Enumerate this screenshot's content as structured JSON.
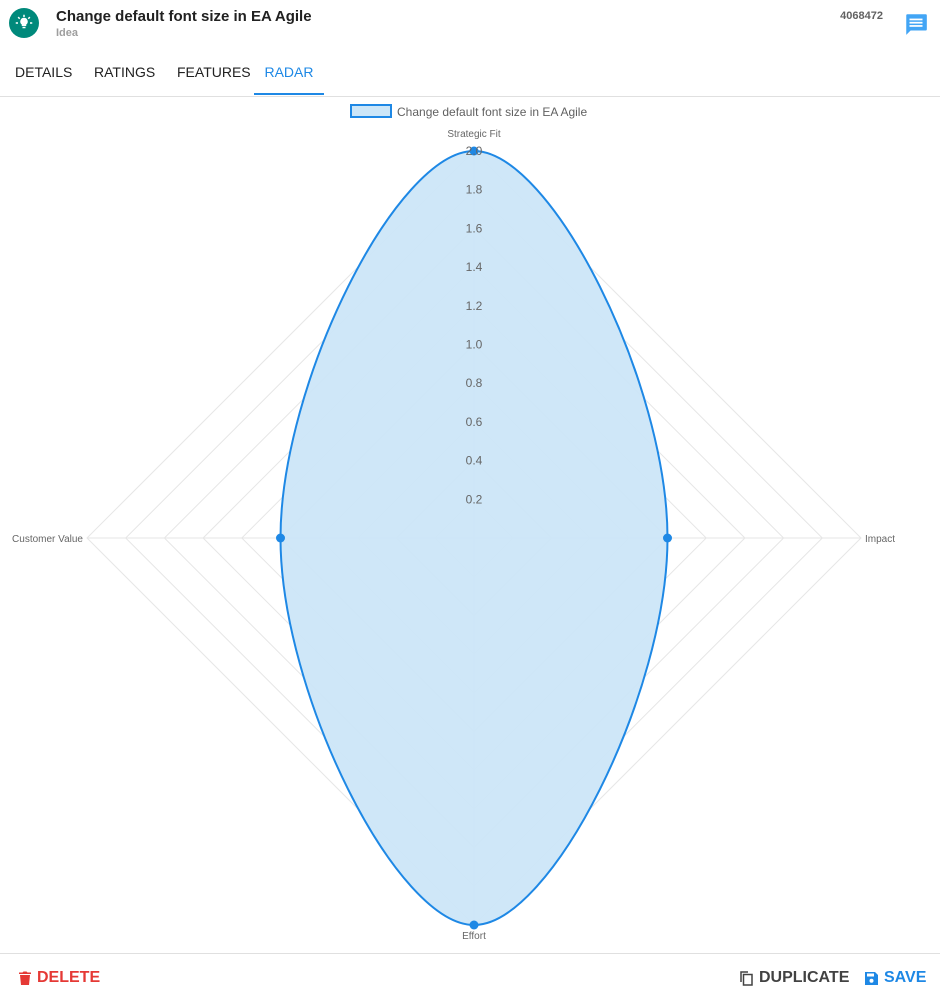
{
  "header": {
    "title": "Change default font size in EA Agile",
    "subtitle": "Idea",
    "item_id": "4068472",
    "accent_color": "#00897b",
    "icon": "lightbulb-icon",
    "comment_icon": "comment-icon"
  },
  "tabs": [
    {
      "label": "DETAILS",
      "active": false
    },
    {
      "label": "RATINGS",
      "active": false
    },
    {
      "label": "FEATURES",
      "active": false
    },
    {
      "label": "RADAR",
      "active": true
    }
  ],
  "chart_data": {
    "type": "radar",
    "legend": {
      "label": "Change default font size in EA Agile",
      "placement": "top"
    },
    "axes": [
      "Strategic Fit",
      "Impact",
      "Effort",
      "Customer Value"
    ],
    "series": [
      {
        "name": "Change default font size in EA Agile",
        "values": [
          2.0,
          1.0,
          2.0,
          1.0
        ],
        "color": "#1e88e5",
        "fill": "#cce6f8"
      }
    ],
    "rmin": 0,
    "rmax": 2.0,
    "ticks": [
      "0.2",
      "0.4",
      "0.6",
      "0.8",
      "1.0",
      "1.2",
      "1.4",
      "1.6",
      "1.8",
      "2.0"
    ],
    "grid": true
  },
  "footer": {
    "delete_label": "DELETE",
    "duplicate_label": "DUPLICATE",
    "save_label": "SAVE",
    "delete_color": "#e53935",
    "save_color": "#1e88e5"
  }
}
